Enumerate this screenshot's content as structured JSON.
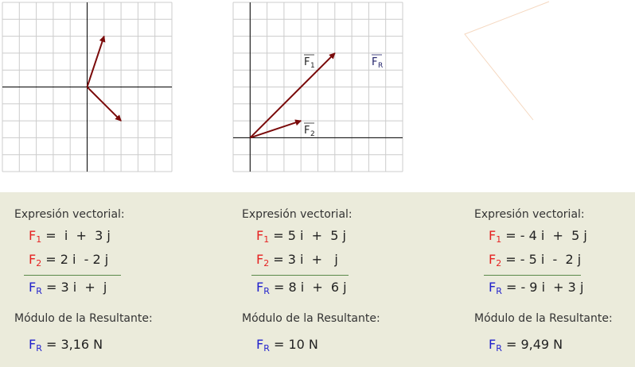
{
  "diagrams": [
    {
      "vectors": [
        {
          "name": "F1",
          "x": 1,
          "y": 3
        },
        {
          "name": "F2",
          "x": 2,
          "y": -2
        }
      ],
      "grid": "10x10",
      "origin_cell": [
        5,
        5
      ]
    },
    {
      "vectors": [
        {
          "name": "F1",
          "x": 5,
          "y": 5
        },
        {
          "name": "F2",
          "x": 3,
          "y": 1
        }
      ],
      "grid": "10x10",
      "origin_cell": [
        1,
        8
      ],
      "labels": {
        "f1": "F",
        "f1_sub": "1",
        "f2": "F",
        "f2_sub": "2",
        "fr": "F",
        "fr_sub": "R"
      }
    }
  ],
  "colors": {
    "vector": "#7a0a0a",
    "f_label": "#e52222",
    "resultant": "#2222cc",
    "panel": "#ebebdb"
  },
  "columns": [
    {
      "heading": "Expresión vectorial:",
      "f1": " =  i  +  3 j",
      "f2": " = 2 i  - 2 j",
      "fr": " = 3 i  +  j",
      "mod_heading": "Módulo de la Resultante:",
      "mod": " = 3,16 N"
    },
    {
      "heading": "Expresión vectorial:",
      "f1": " = 5 i  +  5 j",
      "f2": " = 3 i  +   j",
      "fr": " = 8 i  +  6 j",
      "mod_heading": "Módulo de la Resultante:",
      "mod": " = 10 N"
    },
    {
      "heading": "Expresión vectorial:",
      "f1": " = - 4 i  +  5 j",
      "f2": " = - 5 i  -  2 j",
      "fr": " = - 9 i  + 3 j",
      "mod_heading": "Módulo de la Resultante:",
      "mod": " = 9,49 N"
    }
  ],
  "sym": {
    "F": "F",
    "s1": "1",
    "s2": "2",
    "sR": "R"
  }
}
